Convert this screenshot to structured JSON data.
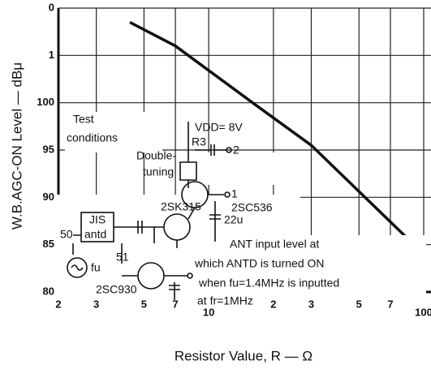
{
  "chart_data": {
    "type": "line",
    "x_label": "Resistor Value, R — Ω",
    "y_label": "W.B.AGC-ON Level — dBμ",
    "xscale": "log",
    "xlim": [
      2,
      100
    ],
    "xticks": [
      2,
      3,
      5,
      7,
      10,
      {
        "value": 20,
        "label": "2"
      },
      {
        "value": 30,
        "label": "3"
      },
      {
        "value": 50,
        "label": "5"
      },
      {
        "value": 70,
        "label": "7"
      },
      100
    ],
    "ylim": [
      80,
      110
    ],
    "yticks": [
      {
        "value": 110,
        "label": "0"
      },
      {
        "value": 105,
        "label": "1"
      },
      100,
      95,
      90,
      85,
      80
    ],
    "grid": true,
    "series": [
      {
        "color": "#111111",
        "x": [
          4.3,
          7,
          16,
          30,
          100
        ],
        "values": [
          108.5,
          106,
          100,
          95.5,
          84
        ]
      }
    ],
    "annotations": [
      "Test",
      "conditions",
      "VDD= 8V",
      "R3",
      "Double-",
      "tuning",
      "2",
      "1",
      "2SC536",
      "22u",
      "2SK315",
      "JIS",
      "antd",
      "50",
      "51",
      "fu",
      "2SC930",
      "ANT input level at",
      "which ANTD is turned ON",
      "when fu=1.4MHz is inputted",
      "at fr=1MHz"
    ]
  }
}
